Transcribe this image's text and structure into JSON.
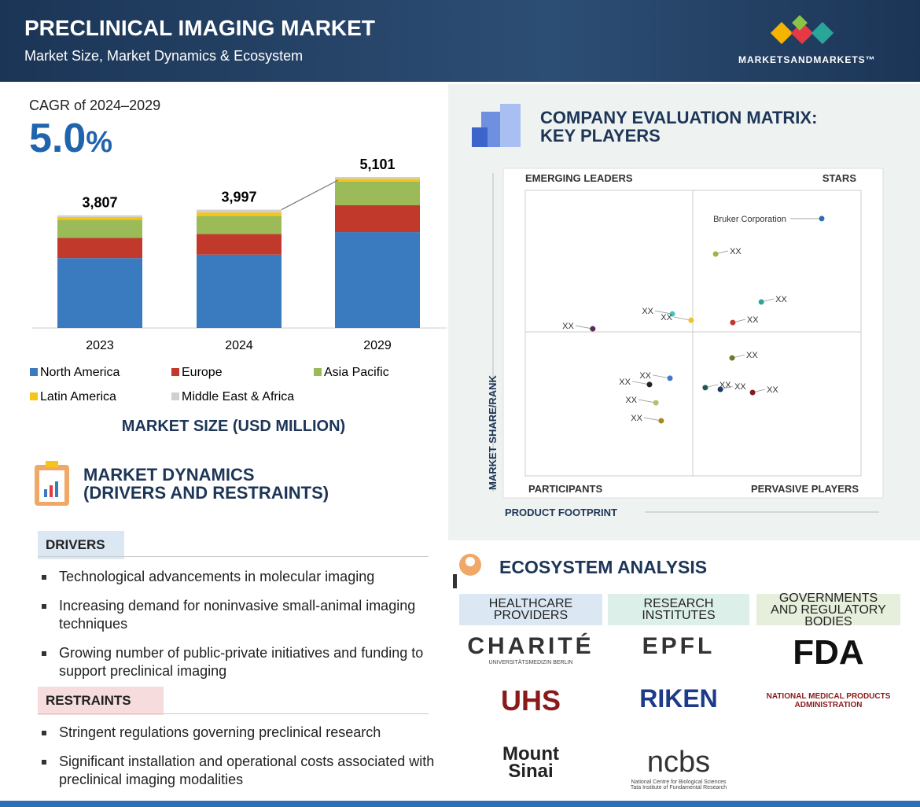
{
  "header": {
    "title": "PRECLINICAL IMAGING MARKET",
    "subtitle": "Market Size, Market Dynamics & Ecosystem",
    "brand": "MARKETSANDMARKETS™"
  },
  "cagr": {
    "label": "CAGR of 2024–2029",
    "value": "5.0",
    "unit": "%"
  },
  "chart_data": [
    {
      "type": "bar",
      "stacked": true,
      "title": "MARKET SIZE (USD MILLION)",
      "categories": [
        "2023",
        "2024",
        "2029"
      ],
      "series": [
        {
          "name": "North America",
          "color": "#3a7abf",
          "values": [
            2360,
            2478,
            3240
          ]
        },
        {
          "name": "Europe",
          "color": "#c0392b",
          "values": [
            685,
            695,
            905
          ]
        },
        {
          "name": "Asia Pacific",
          "color": "#9bbb59",
          "values": [
            610,
            610,
            797
          ]
        },
        {
          "name": "Latin America",
          "color": "#f5c518",
          "values": [
            95,
            120,
            102
          ]
        },
        {
          "name": "Middle East & Africa",
          "color": "#d0d0d0",
          "values": [
            57,
            94,
            57
          ]
        }
      ],
      "totals": [
        3807,
        3997,
        5101
      ],
      "total_labels": [
        "3,807",
        "3,997",
        "5,101"
      ],
      "ylim": [
        0,
        5500
      ]
    },
    {
      "type": "scatter",
      "title": [
        "COMPANY EVALUATION MATRIX:",
        "KEY PLAYERS"
      ],
      "quadrants": {
        "top_left": "EMERGING LEADERS",
        "top_right": "STARS",
        "bottom_left": "PARTICIPANTS",
        "bottom_right": "PERVASIVE PLAYERS"
      },
      "xlabel": "PRODUCT FOOTPRINT",
      "ylabel": "MARKET SHARE/RANK",
      "xlim": [
        0,
        100
      ],
      "ylim": [
        0,
        100
      ],
      "labels": [
        "Bruker Corporation",
        "XX",
        "XX",
        "XX",
        "XX",
        "XX",
        "XX",
        "XX",
        "XX",
        "XX",
        "XX",
        "XX",
        "XX",
        "XX",
        "XX"
      ],
      "x": [
        88.3,
        56.7,
        70.3,
        43.8,
        49.4,
        61.8,
        20.1,
        61.6,
        43.1,
        37.0,
        53.6,
        58.1,
        67.7,
        38.9,
        40.5
      ],
      "y": [
        90.1,
        77.7,
        60.9,
        56.7,
        54.5,
        53.7,
        51.5,
        41.3,
        34.2,
        32.0,
        30.9,
        30.3,
        29.2,
        25.6,
        19.3
      ],
      "colors": [
        "#2e6db4",
        "#9cb44a",
        "#2aa59a",
        "#4cc0c0",
        "#f2c12e",
        "#c0392b",
        "#5b2a5b",
        "#6b7a2a",
        "#3d7cc9",
        "#222222",
        "#1f5a4a",
        "#1d3b6a",
        "#8a1a1a",
        "#a9c46c",
        "#a8862a"
      ]
    }
  ],
  "dynamics": {
    "title": [
      "MARKET DYNAMICS",
      "(DRIVERS AND RESTRAINTS)"
    ],
    "drivers_label": "DRIVERS",
    "drivers": [
      "Technological advancements in molecular imaging",
      "Increasing demand for noninvasive small-animal imaging techniques",
      "Growing number of public-private initiatives and funding to support preclinical imaging"
    ],
    "restraints_label": "RESTRAINTS",
    "restraints": [
      "Stringent regulations governing preclinical research",
      "Significant installation and operational costs associated with preclinical imaging modalities"
    ]
  },
  "ecosystem": {
    "title": "ECOSYSTEM ANALYSIS",
    "columns": [
      {
        "name": "HEALTHCARE PROVIDERS",
        "logos": [
          {
            "text": "CHARITÉ",
            "sub": "UNIVERSITÄTSMEDIZIN BERLIN"
          },
          {
            "text": "UHS"
          },
          {
            "text": "Mount Sinai"
          }
        ]
      },
      {
        "name": "RESEARCH INSTITUTES",
        "logos": [
          {
            "text": "EPFL"
          },
          {
            "text": "RIKEN"
          },
          {
            "text": "ncbs",
            "sub": "National Centre for Biological Sciences Tata Institute of Fundamental Research"
          }
        ]
      },
      {
        "name": "GOVERNMENTS AND REGULATORY BODIES",
        "logos": [
          {
            "text": "FDA"
          },
          {
            "text": "NATIONAL MEDICAL PRODUCTS ADMINISTRATION"
          }
        ]
      }
    ]
  }
}
